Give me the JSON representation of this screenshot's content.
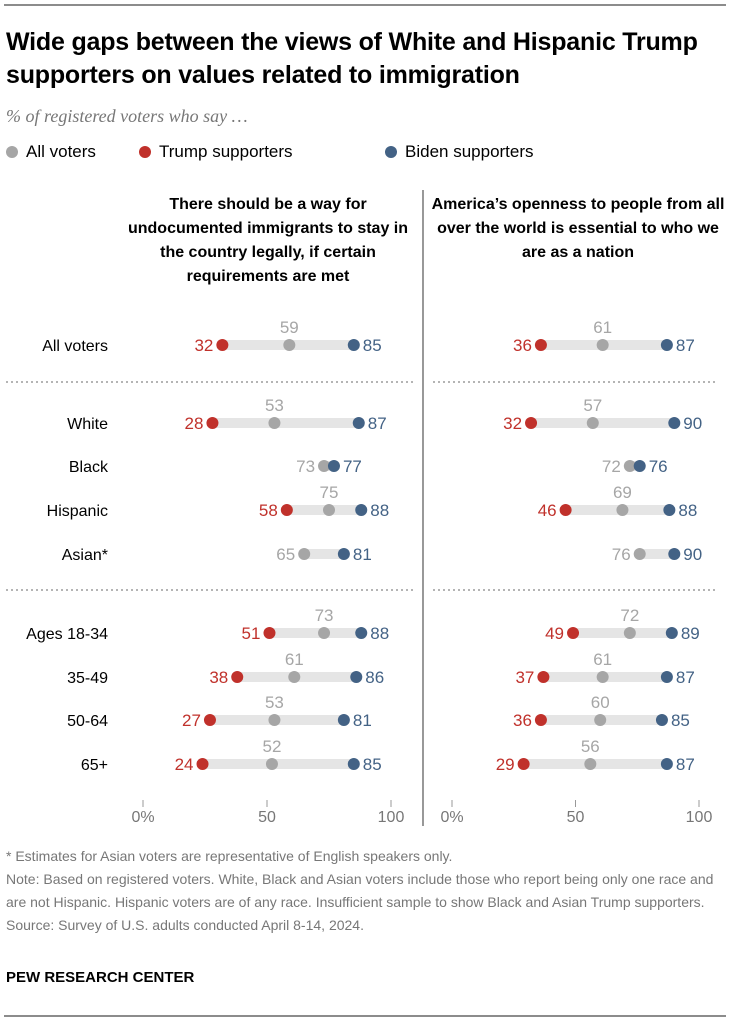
{
  "header": {
    "title": "Wide gaps between the views of White and Hispanic Trump supporters on values related to immigration",
    "subtitle": "% of registered voters who say …"
  },
  "legend": [
    {
      "label": "All voters",
      "color": "#a6a6a6"
    },
    {
      "label": "Trump supporters",
      "color": "#c0312b"
    },
    {
      "label": "Biden supporters",
      "color": "#436285"
    }
  ],
  "colors": {
    "all": "#a6a6a6",
    "trump": "#c0312b",
    "biden": "#436285",
    "bar": "#e5e5e5",
    "all_label": "#a6a6a6",
    "trump_label": "#c0312b",
    "biden_label": "#436285",
    "axis": "#777777"
  },
  "footer": {
    "notes": [
      "* Estimates for Asian voters are representative of English speakers only.",
      "Note: Based on registered voters. White, Black and Asian voters include those who report being only one race and are not Hispanic. Hispanic voters are of any race. Insufficient sample to show Black and Asian Trump supporters.",
      "Source: Survey of U.S. adults conducted April 8-14, 2024."
    ],
    "brand": "PEW RESEARCH CENTER"
  },
  "chart_data": [
    {
      "type": "dot-range",
      "title": "There should be a way for undocumented immigrants to stay in the country legally, if certain requirements are met",
      "xlabel": "",
      "ylabel": "",
      "xlim": [
        0,
        100
      ],
      "ticks": [
        "0%",
        "50",
        "100"
      ],
      "tick_values": [
        0,
        50,
        100
      ],
      "grid": false,
      "legend_position": "top-left",
      "categories": [
        "All voters",
        "White",
        "Black",
        "Hispanic",
        "Asian*",
        "Ages 18-34",
        "35-49",
        "50-64",
        "65+"
      ],
      "groups": [
        [
          "All voters"
        ],
        [
          "White",
          "Black",
          "Hispanic",
          "Asian*"
        ],
        [
          "Ages 18-34",
          "35-49",
          "50-64",
          "65+"
        ]
      ],
      "series": [
        {
          "name": "All voters",
          "key": "all",
          "values": [
            59,
            53,
            73,
            75,
            65,
            73,
            61,
            53,
            52
          ]
        },
        {
          "name": "Trump supporters",
          "key": "trump",
          "values": [
            32,
            28,
            null,
            58,
            null,
            51,
            38,
            27,
            24
          ]
        },
        {
          "name": "Biden supporters",
          "key": "biden",
          "values": [
            85,
            87,
            77,
            88,
            81,
            88,
            86,
            81,
            85
          ]
        }
      ]
    },
    {
      "type": "dot-range",
      "title": "America’s openness to people from all over the world is essential to who we are as a nation",
      "xlabel": "",
      "ylabel": "",
      "xlim": [
        0,
        100
      ],
      "ticks": [
        "0%",
        "50",
        "100"
      ],
      "tick_values": [
        0,
        50,
        100
      ],
      "grid": false,
      "legend_position": "top-left",
      "categories": [
        "All voters",
        "White",
        "Black",
        "Hispanic",
        "Asian*",
        "Ages 18-34",
        "35-49",
        "50-64",
        "65+"
      ],
      "groups": [
        [
          "All voters"
        ],
        [
          "White",
          "Black",
          "Hispanic",
          "Asian*"
        ],
        [
          "Ages 18-34",
          "35-49",
          "50-64",
          "65+"
        ]
      ],
      "series": [
        {
          "name": "All voters",
          "key": "all",
          "values": [
            61,
            57,
            72,
            69,
            76,
            72,
            61,
            60,
            56
          ]
        },
        {
          "name": "Trump supporters",
          "key": "trump",
          "values": [
            36,
            32,
            null,
            46,
            null,
            49,
            37,
            36,
            29
          ]
        },
        {
          "name": "Biden supporters",
          "key": "biden",
          "values": [
            87,
            90,
            76,
            88,
            90,
            89,
            87,
            85,
            87
          ]
        }
      ]
    }
  ]
}
